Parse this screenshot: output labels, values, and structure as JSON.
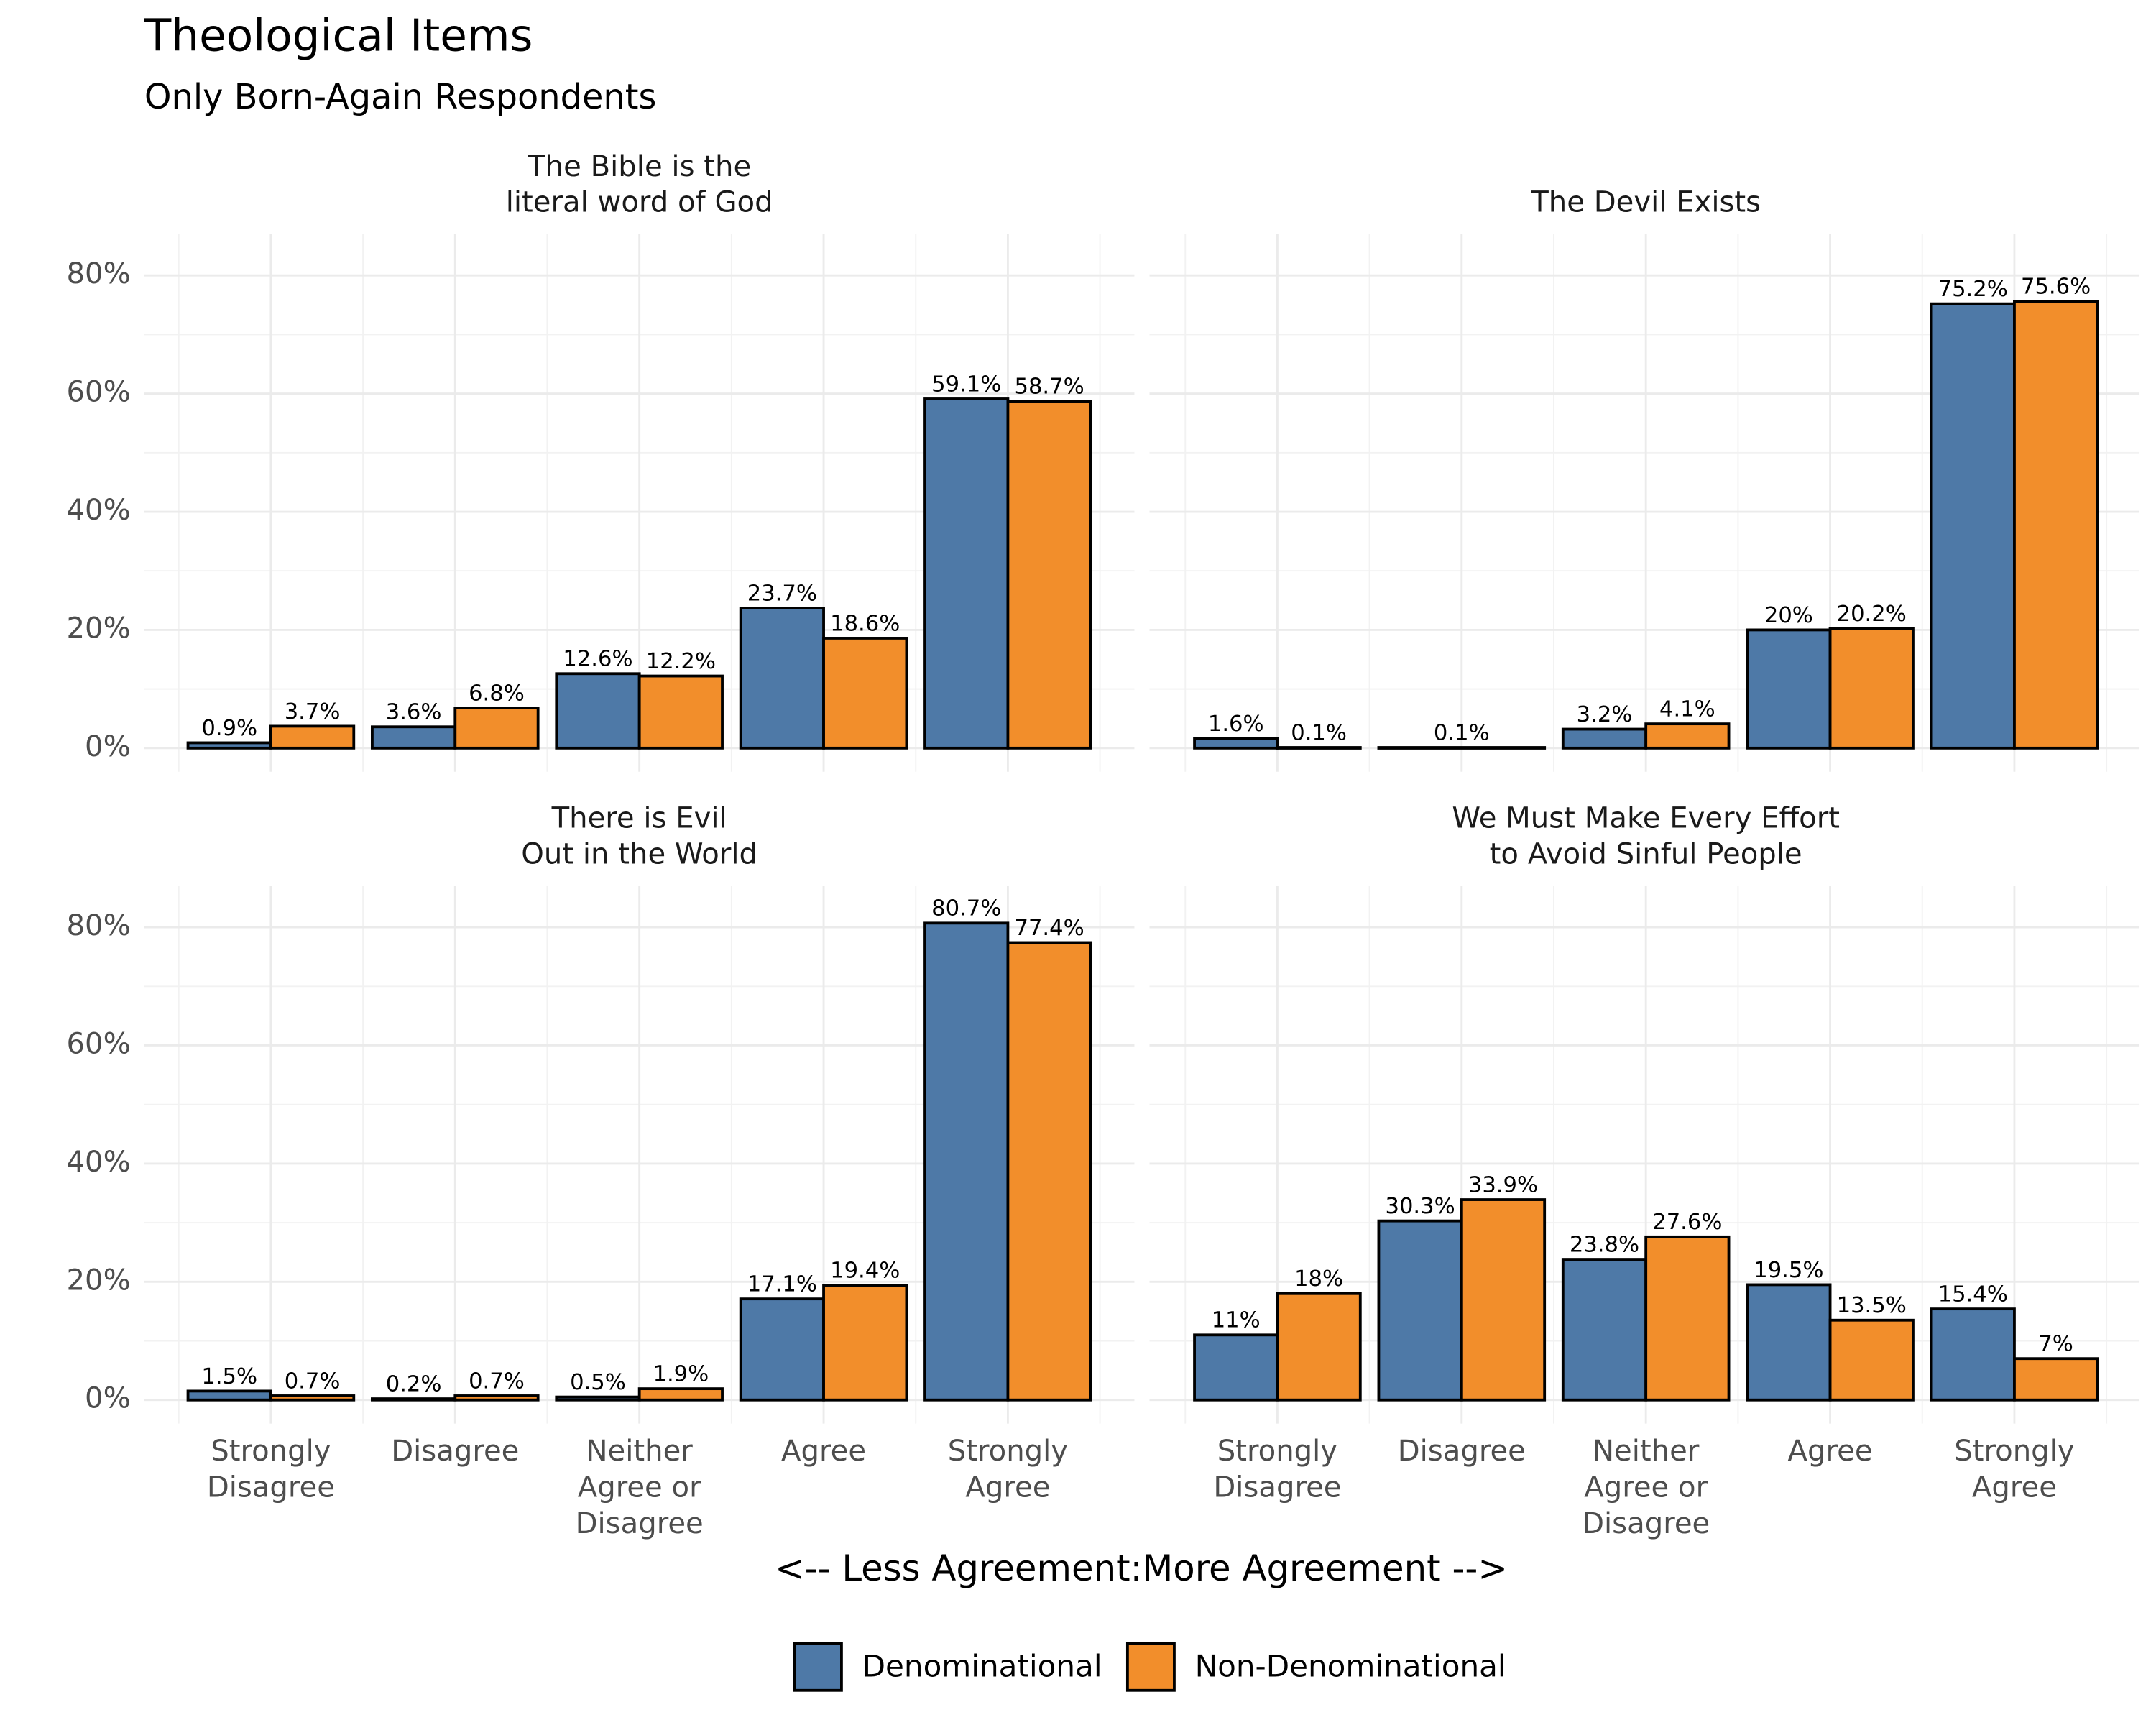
{
  "title": "Theological Items",
  "subtitle": "Only Born-Again Respondents",
  "x_label": "<-- Less Agreement:More Agreement -->",
  "legend": "bottom",
  "chart_data": [
    {
      "type": "bar",
      "title": "The Bible is the\nliteral word of God",
      "categories": [
        "Strongly\nDisagree",
        "Disagree",
        "Neither\nAgree or\nDisagree",
        "Agree",
        "Strongly\nAgree"
      ],
      "series": [
        {
          "name": "Denominational",
          "color": "#4e79a7",
          "values": [
            0.9,
            3.6,
            12.6,
            23.7,
            59.1
          ],
          "value_labels": [
            "0.9%",
            "3.6%",
            "12.6%",
            "23.7%",
            "59.1%"
          ]
        },
        {
          "name": "Non-Denominational",
          "color": "#f28e2b",
          "values": [
            3.7,
            6.8,
            12.2,
            18.6,
            58.7
          ],
          "value_labels": [
            "3.7%",
            "6.8%",
            "12.2%",
            "18.6%",
            "58.7%"
          ]
        }
      ],
      "ylim": [
        -4,
        87
      ],
      "yticks": [
        {
          "value": 0,
          "label": "0%"
        },
        {
          "value": 20,
          "label": "20%"
        },
        {
          "value": 40,
          "label": "40%"
        },
        {
          "value": 60,
          "label": "60%"
        },
        {
          "value": 80,
          "label": "80%"
        }
      ],
      "minor_yticks": [
        10,
        30,
        50,
        70
      ],
      "grid": true
    },
    {
      "type": "bar",
      "title": "The Devil Exists",
      "categories": [
        "Strongly\nDisagree",
        "Disagree",
        "Neither\nAgree or\nDisagree",
        "Agree",
        "Strongly\nAgree"
      ],
      "series": [
        {
          "name": "Denominational",
          "color": "#4e79a7",
          "values": [
            1.6,
            null,
            3.2,
            20,
            75.2
          ],
          "value_labels": [
            "1.6%",
            null,
            "3.2%",
            "20%",
            "75.2%"
          ]
        },
        {
          "name": "Non-Denominational",
          "color": "#f28e2b",
          "values": [
            0.1,
            0.1,
            4.1,
            20.2,
            75.6
          ],
          "value_labels": [
            "0.1%",
            "0.1%",
            "4.1%",
            "20.2%",
            "75.6%"
          ]
        }
      ],
      "ylim": [
        -4,
        87
      ],
      "yticks": [
        {
          "value": 0,
          "label": "0%"
        },
        {
          "value": 20,
          "label": "20%"
        },
        {
          "value": 40,
          "label": "40%"
        },
        {
          "value": 60,
          "label": "60%"
        },
        {
          "value": 80,
          "label": "80%"
        }
      ],
      "minor_yticks": [
        10,
        30,
        50,
        70
      ],
      "grid": true
    },
    {
      "type": "bar",
      "title": "There is Evil\nOut in the World",
      "categories": [
        "Strongly\nDisagree",
        "Disagree",
        "Neither\nAgree or\nDisagree",
        "Agree",
        "Strongly\nAgree"
      ],
      "series": [
        {
          "name": "Denominational",
          "color": "#4e79a7",
          "values": [
            1.5,
            0.2,
            0.5,
            17.1,
            80.7
          ],
          "value_labels": [
            "1.5%",
            "0.2%",
            "0.5%",
            "17.1%",
            "80.7%"
          ]
        },
        {
          "name": "Non-Denominational",
          "color": "#f28e2b",
          "values": [
            0.7,
            0.7,
            1.9,
            19.4,
            77.4
          ],
          "value_labels": [
            "0.7%",
            "0.7%",
            "1.9%",
            "19.4%",
            "77.4%"
          ]
        }
      ],
      "ylim": [
        -4,
        87
      ],
      "yticks": [
        {
          "value": 0,
          "label": "0%"
        },
        {
          "value": 20,
          "label": "20%"
        },
        {
          "value": 40,
          "label": "40%"
        },
        {
          "value": 60,
          "label": "60%"
        },
        {
          "value": 80,
          "label": "80%"
        }
      ],
      "minor_yticks": [
        10,
        30,
        50,
        70
      ],
      "grid": true
    },
    {
      "type": "bar",
      "title": "We Must Make Every Effort\nto Avoid Sinful People",
      "categories": [
        "Strongly\nDisagree",
        "Disagree",
        "Neither\nAgree or\nDisagree",
        "Agree",
        "Strongly\nAgree"
      ],
      "series": [
        {
          "name": "Denominational",
          "color": "#4e79a7",
          "values": [
            11,
            30.3,
            23.8,
            19.5,
            15.4
          ],
          "value_labels": [
            "11%",
            "30.3%",
            "23.8%",
            "19.5%",
            "15.4%"
          ]
        },
        {
          "name": "Non-Denominational",
          "color": "#f28e2b",
          "values": [
            18,
            33.9,
            27.6,
            13.5,
            7
          ],
          "value_labels": [
            "18%",
            "33.9%",
            "27.6%",
            "13.5%",
            "7%"
          ]
        }
      ],
      "ylim": [
        -4,
        87
      ],
      "yticks": [
        {
          "value": 0,
          "label": "0%"
        },
        {
          "value": 20,
          "label": "20%"
        },
        {
          "value": 40,
          "label": "40%"
        },
        {
          "value": 60,
          "label": "60%"
        },
        {
          "value": 80,
          "label": "80%"
        }
      ],
      "minor_yticks": [
        10,
        30,
        50,
        70
      ],
      "grid": true
    }
  ]
}
